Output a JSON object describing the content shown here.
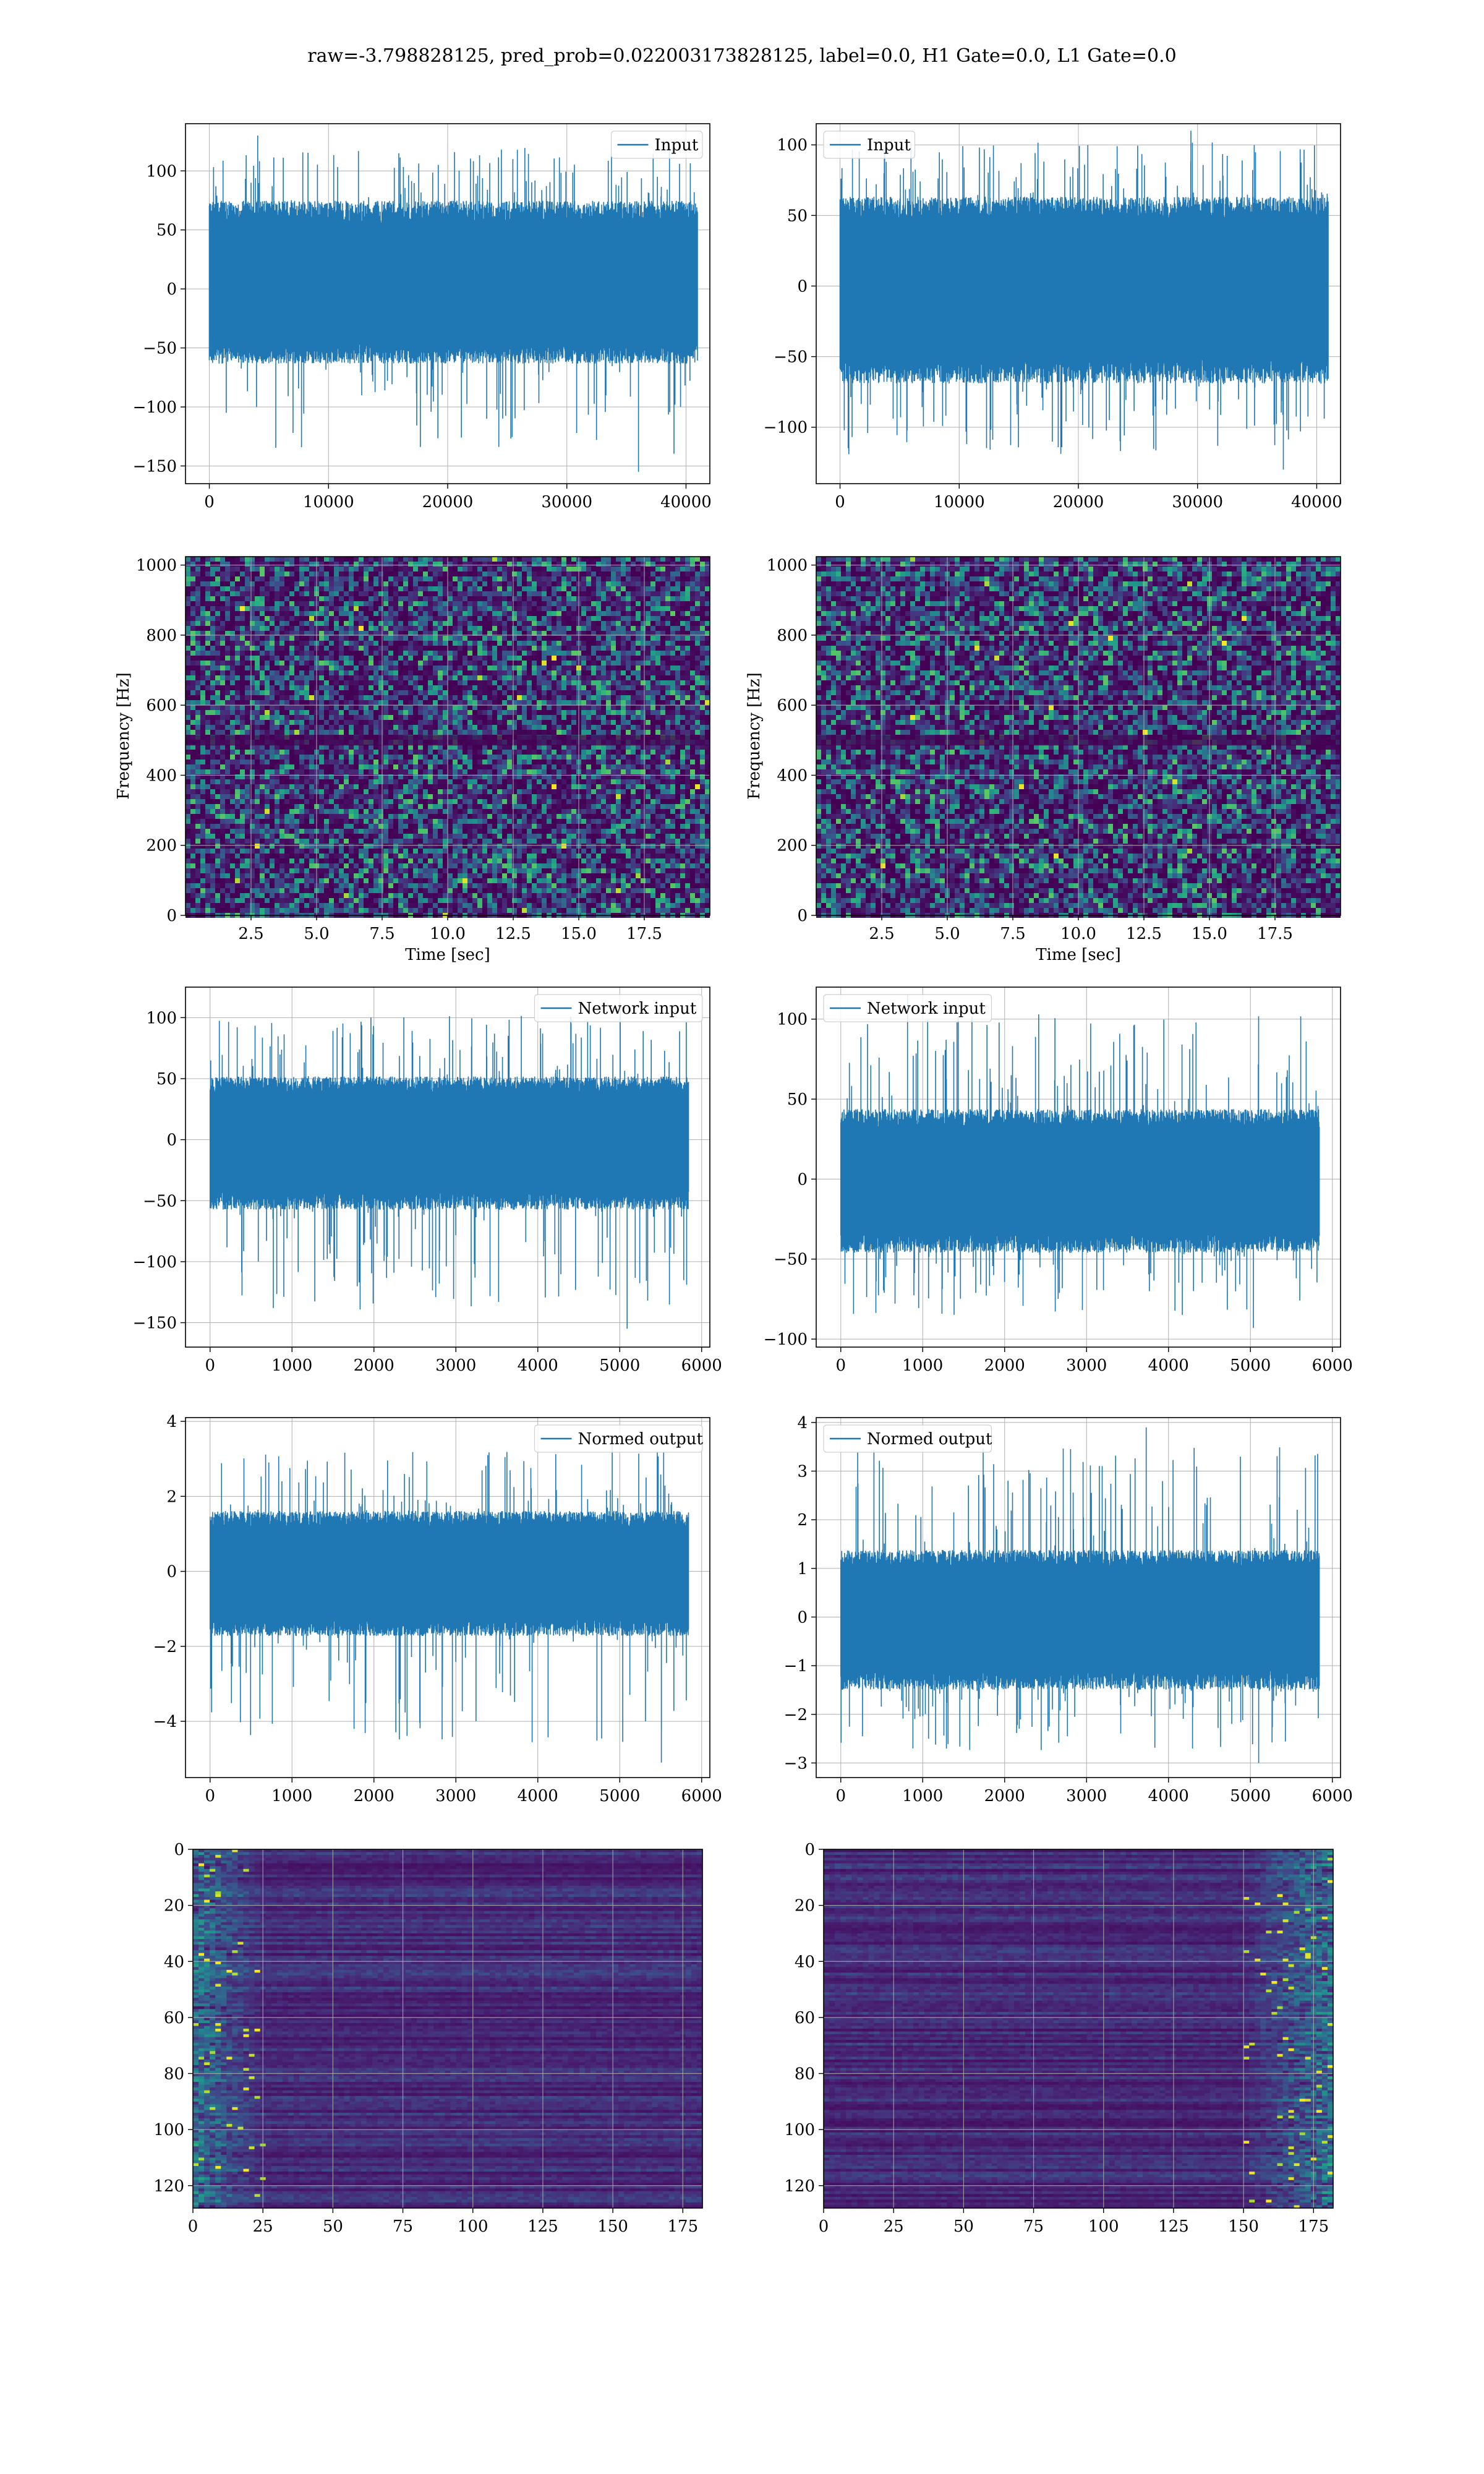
{
  "figure": {
    "title": "raw=-3.798828125, pred_prob=0.022003173828125, label=0.0, H1 Gate=0.0, L1 Gate=0.0"
  },
  "colors": {
    "line": "#1f77b4",
    "grid": "#b0b0b0",
    "viridis_low": "#440154",
    "viridis_high": "#fde725"
  },
  "chart_data": [
    {
      "panel": "row1-left",
      "type": "line",
      "legend": [
        "Input"
      ],
      "legend_loc": "upper right",
      "xlim": [
        -2000,
        42000
      ],
      "ylim": [
        -165,
        140
      ],
      "xticks": [
        0,
        10000,
        20000,
        30000,
        40000
      ],
      "yticks": [
        -150,
        -100,
        -50,
        0,
        50,
        100
      ],
      "series": [
        {
          "name": "Input",
          "n": 40960,
          "x_range": [
            0,
            40960
          ],
          "core_band": [
            -55,
            65
          ],
          "min": -155,
          "max": 130
        }
      ],
      "grid": true
    },
    {
      "panel": "row1-right",
      "type": "line",
      "legend": [
        "Input"
      ],
      "legend_loc": "upper left",
      "xlim": [
        -2000,
        42000
      ],
      "ylim": [
        -140,
        115
      ],
      "xticks": [
        0,
        10000,
        20000,
        30000,
        40000
      ],
      "yticks": [
        -100,
        -50,
        0,
        50,
        100
      ],
      "series": [
        {
          "name": "Input",
          "n": 40960,
          "x_range": [
            0,
            40960
          ],
          "core_band": [
            -60,
            55
          ],
          "min": -130,
          "max": 110
        }
      ],
      "grid": true
    },
    {
      "panel": "row2-left",
      "type": "heatmap",
      "xlabel": "Time [sec]",
      "ylabel": "Frequency [Hz]",
      "xlim": [
        0,
        20
      ],
      "ylim": [
        0,
        1024
      ],
      "xticks": [
        2.5,
        5.0,
        7.5,
        10.0,
        12.5,
        15.0,
        17.5
      ],
      "yticks": [
        0,
        200,
        400,
        600,
        800,
        1000
      ],
      "colormap": "viridis",
      "dark_band_hz": [
        485,
        515
      ],
      "grid": true
    },
    {
      "panel": "row2-right",
      "type": "heatmap",
      "xlabel": "Time [sec]",
      "ylabel": "Frequency [Hz]",
      "xlim": [
        0,
        20
      ],
      "ylim": [
        0,
        1024
      ],
      "xticks": [
        2.5,
        5.0,
        7.5,
        10.0,
        12.5,
        15.0,
        17.5
      ],
      "yticks": [
        0,
        200,
        400,
        600,
        800,
        1000
      ],
      "colormap": "viridis",
      "dark_band_hz": [
        485,
        515
      ],
      "grid": true
    },
    {
      "panel": "row3-left",
      "type": "line",
      "legend": [
        "Network input"
      ],
      "legend_loc": "upper right",
      "xlim": [
        -300,
        6100
      ],
      "ylim": [
        -170,
        125
      ],
      "xticks": [
        0,
        1000,
        2000,
        3000,
        4000,
        5000,
        6000
      ],
      "yticks": [
        -150,
        -100,
        -50,
        0,
        50,
        100
      ],
      "series": [
        {
          "name": "Network input",
          "n": 5840,
          "x_range": [
            0,
            5840
          ],
          "core_band": [
            -50,
            45
          ],
          "min": -155,
          "max": 112
        }
      ],
      "grid": true
    },
    {
      "panel": "row3-right",
      "type": "line",
      "legend": [
        "Network input"
      ],
      "legend_loc": "upper left",
      "xlim": [
        -300,
        6100
      ],
      "ylim": [
        -105,
        120
      ],
      "xticks": [
        0,
        1000,
        2000,
        3000,
        4000,
        5000,
        6000
      ],
      "yticks": [
        -100,
        -50,
        0,
        50,
        100
      ],
      "series": [
        {
          "name": "Network input",
          "n": 5840,
          "x_range": [
            0,
            5840
          ],
          "core_band": [
            -40,
            38
          ],
          "min": -93,
          "max": 115
        }
      ],
      "grid": true
    },
    {
      "panel": "row4-left",
      "type": "line",
      "legend": [
        "Normed output"
      ],
      "legend_loc": "upper right",
      "xlim": [
        -300,
        6100
      ],
      "ylim": [
        -5.5,
        4.1
      ],
      "xticks": [
        0,
        1000,
        2000,
        3000,
        4000,
        5000,
        6000
      ],
      "yticks": [
        -4,
        -2,
        0,
        2,
        4
      ],
      "series": [
        {
          "name": "Normed output",
          "n": 5840,
          "x_range": [
            0,
            5840
          ],
          "core_band": [
            -1.5,
            1.4
          ],
          "min": -5.1,
          "max": 3.6
        }
      ],
      "grid": true
    },
    {
      "panel": "row4-right",
      "type": "line",
      "legend": [
        "Normed output"
      ],
      "legend_loc": "upper left",
      "xlim": [
        -300,
        6100
      ],
      "ylim": [
        -3.3,
        4.1
      ],
      "xticks": [
        0,
        1000,
        2000,
        3000,
        4000,
        5000,
        6000
      ],
      "yticks": [
        -3,
        -2,
        -1,
        0,
        1,
        2,
        3,
        4
      ],
      "series": [
        {
          "name": "Normed output",
          "n": 5840,
          "x_range": [
            0,
            5840
          ],
          "core_band": [
            -1.3,
            1.2
          ],
          "min": -3.0,
          "max": 3.9
        }
      ],
      "grid": true
    },
    {
      "panel": "row5-left",
      "type": "heatmap",
      "xlim": [
        0,
        182
      ],
      "ylim_inverted": [
        128,
        0
      ],
      "xticks": [
        0,
        25,
        50,
        75,
        100,
        125,
        150,
        175
      ],
      "yticks": [
        0,
        20,
        40,
        60,
        80,
        100,
        120
      ],
      "colormap": "viridis",
      "bright_region_x": [
        0,
        25
      ],
      "grid": true
    },
    {
      "panel": "row5-right",
      "type": "heatmap",
      "xlim": [
        0,
        182
      ],
      "ylim_inverted": [
        128,
        0
      ],
      "xticks": [
        0,
        25,
        50,
        75,
        100,
        125,
        150,
        175
      ],
      "yticks": [
        0,
        20,
        40,
        60,
        80,
        100,
        120
      ],
      "colormap": "viridis",
      "bright_region_x": [
        150,
        182
      ],
      "grid": true
    }
  ]
}
